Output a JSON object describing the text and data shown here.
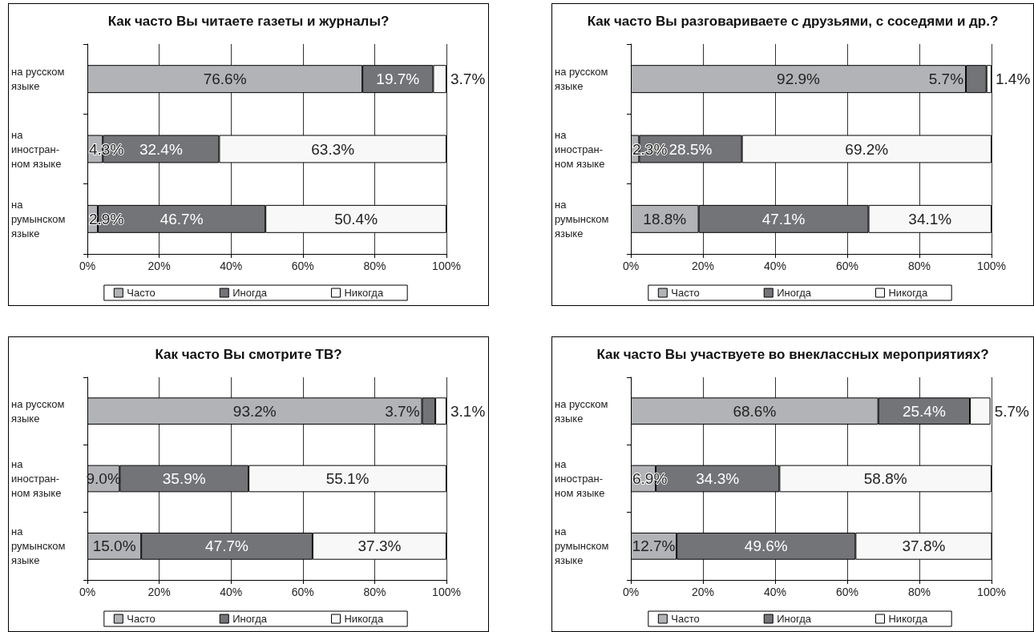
{
  "chart_data": [
    {
      "type": "bar",
      "orientation": "horizontal",
      "stacked": true,
      "title": "Как часто Вы читаете газеты и журналы?",
      "categories": [
        "на русском\nязыке",
        "на\nиностран-\nном языке",
        "на\nрумынском\nязыке"
      ],
      "series": [
        {
          "name": "Часто",
          "color": "#b1b3b6",
          "values": [
            76.6,
            4.3,
            2.9
          ],
          "value_labels": [
            "76.6%",
            "4.3%",
            "2.9%"
          ]
        },
        {
          "name": "Иногда",
          "color": "#737478",
          "values": [
            19.7,
            32.4,
            46.7
          ],
          "value_labels": [
            "19.7%",
            "32.4%",
            "46.7%"
          ]
        },
        {
          "name": "Никогда",
          "color": "#f8f8f8",
          "values": [
            3.7,
            63.3,
            50.4
          ],
          "value_labels": [
            "3.7%",
            "63.3%",
            "50.4%"
          ]
        }
      ],
      "xlim": [
        0,
        100
      ],
      "xticks": [
        {
          "value": 0,
          "label": "0%"
        },
        {
          "value": 20,
          "label": "20%"
        },
        {
          "value": 40,
          "label": "40%"
        },
        {
          "value": 60,
          "label": "60%"
        },
        {
          "value": 80,
          "label": "80%"
        },
        {
          "value": 100,
          "label": "100%"
        }
      ],
      "grid": "x",
      "legend": "bottom"
    },
    {
      "type": "bar",
      "orientation": "horizontal",
      "stacked": true,
      "title": "Как часто Вы разговариваете с друзьями, с соседями и др.?",
      "categories": [
        "на русском\nязыке",
        "на\nиностран-\nном языке",
        "на\nрумынском\nязыке"
      ],
      "series": [
        {
          "name": "Часто",
          "color": "#b1b3b6",
          "values": [
            92.9,
            2.3,
            18.8
          ],
          "value_labels": [
            "92.9%",
            "2.3%",
            "18.8%"
          ]
        },
        {
          "name": "Иногда",
          "color": "#737478",
          "values": [
            5.7,
            28.5,
            47.1
          ],
          "value_labels": [
            "5.7%",
            "28.5%",
            "47.1%"
          ]
        },
        {
          "name": "Никогда",
          "color": "#f8f8f8",
          "values": [
            1.4,
            69.2,
            34.1
          ],
          "value_labels": [
            "1.4%",
            "69.2%",
            "34.1%"
          ]
        }
      ],
      "xlim": [
        0,
        100
      ],
      "xticks": [
        {
          "value": 0,
          "label": "0%"
        },
        {
          "value": 20,
          "label": "20%"
        },
        {
          "value": 40,
          "label": "40%"
        },
        {
          "value": 60,
          "label": "60%"
        },
        {
          "value": 80,
          "label": "80%"
        },
        {
          "value": 100,
          "label": "100%"
        }
      ],
      "grid": "x",
      "legend": "bottom"
    },
    {
      "type": "bar",
      "orientation": "horizontal",
      "stacked": true,
      "title": "Как часто Вы смотрите ТВ?",
      "categories": [
        "на русском\nязыке",
        "на\nиностран-\nном языке",
        "на\nрумынском\nязыке"
      ],
      "series": [
        {
          "name": "Часто",
          "color": "#b1b3b6",
          "values": [
            93.2,
            9.0,
            15.0
          ],
          "value_labels": [
            "93.2%",
            "9.0%",
            "15.0%"
          ]
        },
        {
          "name": "Иногда",
          "color": "#737478",
          "values": [
            3.7,
            35.9,
            47.7
          ],
          "value_labels": [
            "3.7%",
            "35.9%",
            "47.7%"
          ]
        },
        {
          "name": "Никогда",
          "color": "#f8f8f8",
          "values": [
            3.1,
            55.1,
            37.3
          ],
          "value_labels": [
            "3.1%",
            "55.1%",
            "37.3%"
          ]
        }
      ],
      "xlim": [
        0,
        100
      ],
      "xticks": [
        {
          "value": 0,
          "label": "0%"
        },
        {
          "value": 20,
          "label": "20%"
        },
        {
          "value": 40,
          "label": "40%"
        },
        {
          "value": 60,
          "label": "60%"
        },
        {
          "value": 80,
          "label": "80%"
        },
        {
          "value": 100,
          "label": "100%"
        }
      ],
      "grid": "x",
      "legend": "bottom"
    },
    {
      "type": "bar",
      "orientation": "horizontal",
      "stacked": true,
      "title": "Как часто Вы участвуете во внеклассных мероприятиях?",
      "categories": [
        "на русском\nязыке",
        "на\nиностран-\nном языке",
        "на\nрумынском\nязыке"
      ],
      "series": [
        {
          "name": "Часто",
          "color": "#b1b3b6",
          "values": [
            68.6,
            6.9,
            12.7
          ],
          "value_labels": [
            "68.6%",
            "6.9%",
            "12.7%"
          ]
        },
        {
          "name": "Иногда",
          "color": "#737478",
          "values": [
            25.4,
            34.3,
            49.6
          ],
          "value_labels": [
            "25.4%",
            "34.3%",
            "49.6%"
          ]
        },
        {
          "name": "Никогда",
          "color": "#f8f8f8",
          "values": [
            5.7,
            58.8,
            37.8
          ],
          "value_labels": [
            "5.7%",
            "58.8%",
            "37.8%"
          ]
        }
      ],
      "xlim": [
        0,
        100
      ],
      "xticks": [
        {
          "value": 0,
          "label": "0%"
        },
        {
          "value": 20,
          "label": "20%"
        },
        {
          "value": 40,
          "label": "40%"
        },
        {
          "value": 60,
          "label": "60%"
        },
        {
          "value": 80,
          "label": "80%"
        },
        {
          "value": 100,
          "label": "100%"
        }
      ],
      "grid": "x",
      "legend": "bottom"
    }
  ]
}
